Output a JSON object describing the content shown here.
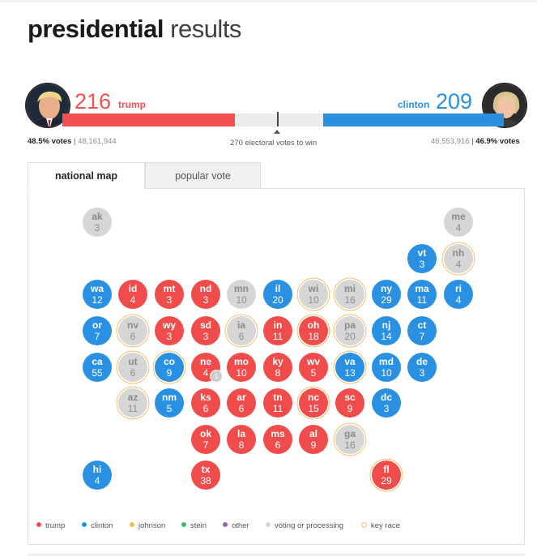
{
  "page": {
    "title_bold": "presidential",
    "title_light": "results"
  },
  "candidates": {
    "trump": {
      "electoral_votes": "216",
      "name": "trump",
      "vote_pct": "48.5% votes",
      "vote_count": "48,161,944",
      "color": "#f35151"
    },
    "clinton": {
      "electoral_votes": "209",
      "name": "clinton",
      "vote_pct": "46.9% votes",
      "vote_count": "46,553,916",
      "color": "#2b8fe0"
    },
    "to_win_label": "270 electoral votes to win",
    "separator": "|"
  },
  "tabs": [
    {
      "label": "national map"
    },
    {
      "label": "popular vote"
    }
  ],
  "colors": {
    "trump": "#f04c4c",
    "clinton": "#2a90e2",
    "johnson": "#f5c242",
    "stein": "#34c06b",
    "other": "#8e6bb4",
    "processing": "#d6d6d6",
    "key_race": "#f0c36a"
  },
  "states": {
    "ak": {
      "abbr": "ak",
      "votes": "3"
    },
    "me": {
      "abbr": "me",
      "votes": "4"
    },
    "vt": {
      "abbr": "vt",
      "votes": "3"
    },
    "nh": {
      "abbr": "nh",
      "votes": "4"
    },
    "wa": {
      "abbr": "wa",
      "votes": "12"
    },
    "id": {
      "abbr": "id",
      "votes": "4"
    },
    "mt": {
      "abbr": "mt",
      "votes": "3"
    },
    "nd": {
      "abbr": "nd",
      "votes": "3"
    },
    "mn": {
      "abbr": "mn",
      "votes": "10"
    },
    "il": {
      "abbr": "il",
      "votes": "20"
    },
    "wi": {
      "abbr": "wi",
      "votes": "10"
    },
    "mi": {
      "abbr": "mi",
      "votes": "16"
    },
    "ny": {
      "abbr": "ny",
      "votes": "29"
    },
    "ma": {
      "abbr": "ma",
      "votes": "11"
    },
    "ri": {
      "abbr": "ri",
      "votes": "4"
    },
    "or": {
      "abbr": "or",
      "votes": "7"
    },
    "nv": {
      "abbr": "nv",
      "votes": "6"
    },
    "wy": {
      "abbr": "wy",
      "votes": "3"
    },
    "sd": {
      "abbr": "sd",
      "votes": "3"
    },
    "ia": {
      "abbr": "ia",
      "votes": "6"
    },
    "in": {
      "abbr": "in",
      "votes": "11"
    },
    "oh": {
      "abbr": "oh",
      "votes": "18"
    },
    "pa": {
      "abbr": "pa",
      "votes": "20"
    },
    "nj": {
      "abbr": "nj",
      "votes": "14"
    },
    "ct": {
      "abbr": "ct",
      "votes": "7"
    },
    "ca": {
      "abbr": "ca",
      "votes": "55"
    },
    "ut": {
      "abbr": "ut",
      "votes": "6"
    },
    "co": {
      "abbr": "co",
      "votes": "9"
    },
    "ne": {
      "abbr": "ne",
      "votes": "4",
      "badge": "1"
    },
    "mo": {
      "abbr": "mo",
      "votes": "10"
    },
    "ky": {
      "abbr": "ky",
      "votes": "8"
    },
    "wv": {
      "abbr": "wv",
      "votes": "5"
    },
    "va": {
      "abbr": "va",
      "votes": "13"
    },
    "md": {
      "abbr": "md",
      "votes": "10"
    },
    "de": {
      "abbr": "de",
      "votes": "3"
    },
    "az": {
      "abbr": "az",
      "votes": "11"
    },
    "nm": {
      "abbr": "nm",
      "votes": "5"
    },
    "ks": {
      "abbr": "ks",
      "votes": "6"
    },
    "ar": {
      "abbr": "ar",
      "votes": "6"
    },
    "tn": {
      "abbr": "tn",
      "votes": "11"
    },
    "nc": {
      "abbr": "nc",
      "votes": "15"
    },
    "sc": {
      "abbr": "sc",
      "votes": "9"
    },
    "dc": {
      "abbr": "dc",
      "votes": "3"
    },
    "ok": {
      "abbr": "ok",
      "votes": "7"
    },
    "la": {
      "abbr": "la",
      "votes": "8"
    },
    "ms": {
      "abbr": "ms",
      "votes": "6"
    },
    "al": {
      "abbr": "al",
      "votes": "9"
    },
    "ga": {
      "abbr": "ga",
      "votes": "16"
    },
    "hi": {
      "abbr": "hi",
      "votes": "4"
    },
    "tx": {
      "abbr": "tx",
      "votes": "38"
    },
    "fl": {
      "abbr": "fl",
      "votes": "29"
    }
  },
  "legend": [
    {
      "label": "trump"
    },
    {
      "label": "clinton"
    },
    {
      "label": "johnson"
    },
    {
      "label": "stein"
    },
    {
      "label": "other"
    },
    {
      "label": "voting or processing"
    },
    {
      "label": "key race"
    }
  ]
}
